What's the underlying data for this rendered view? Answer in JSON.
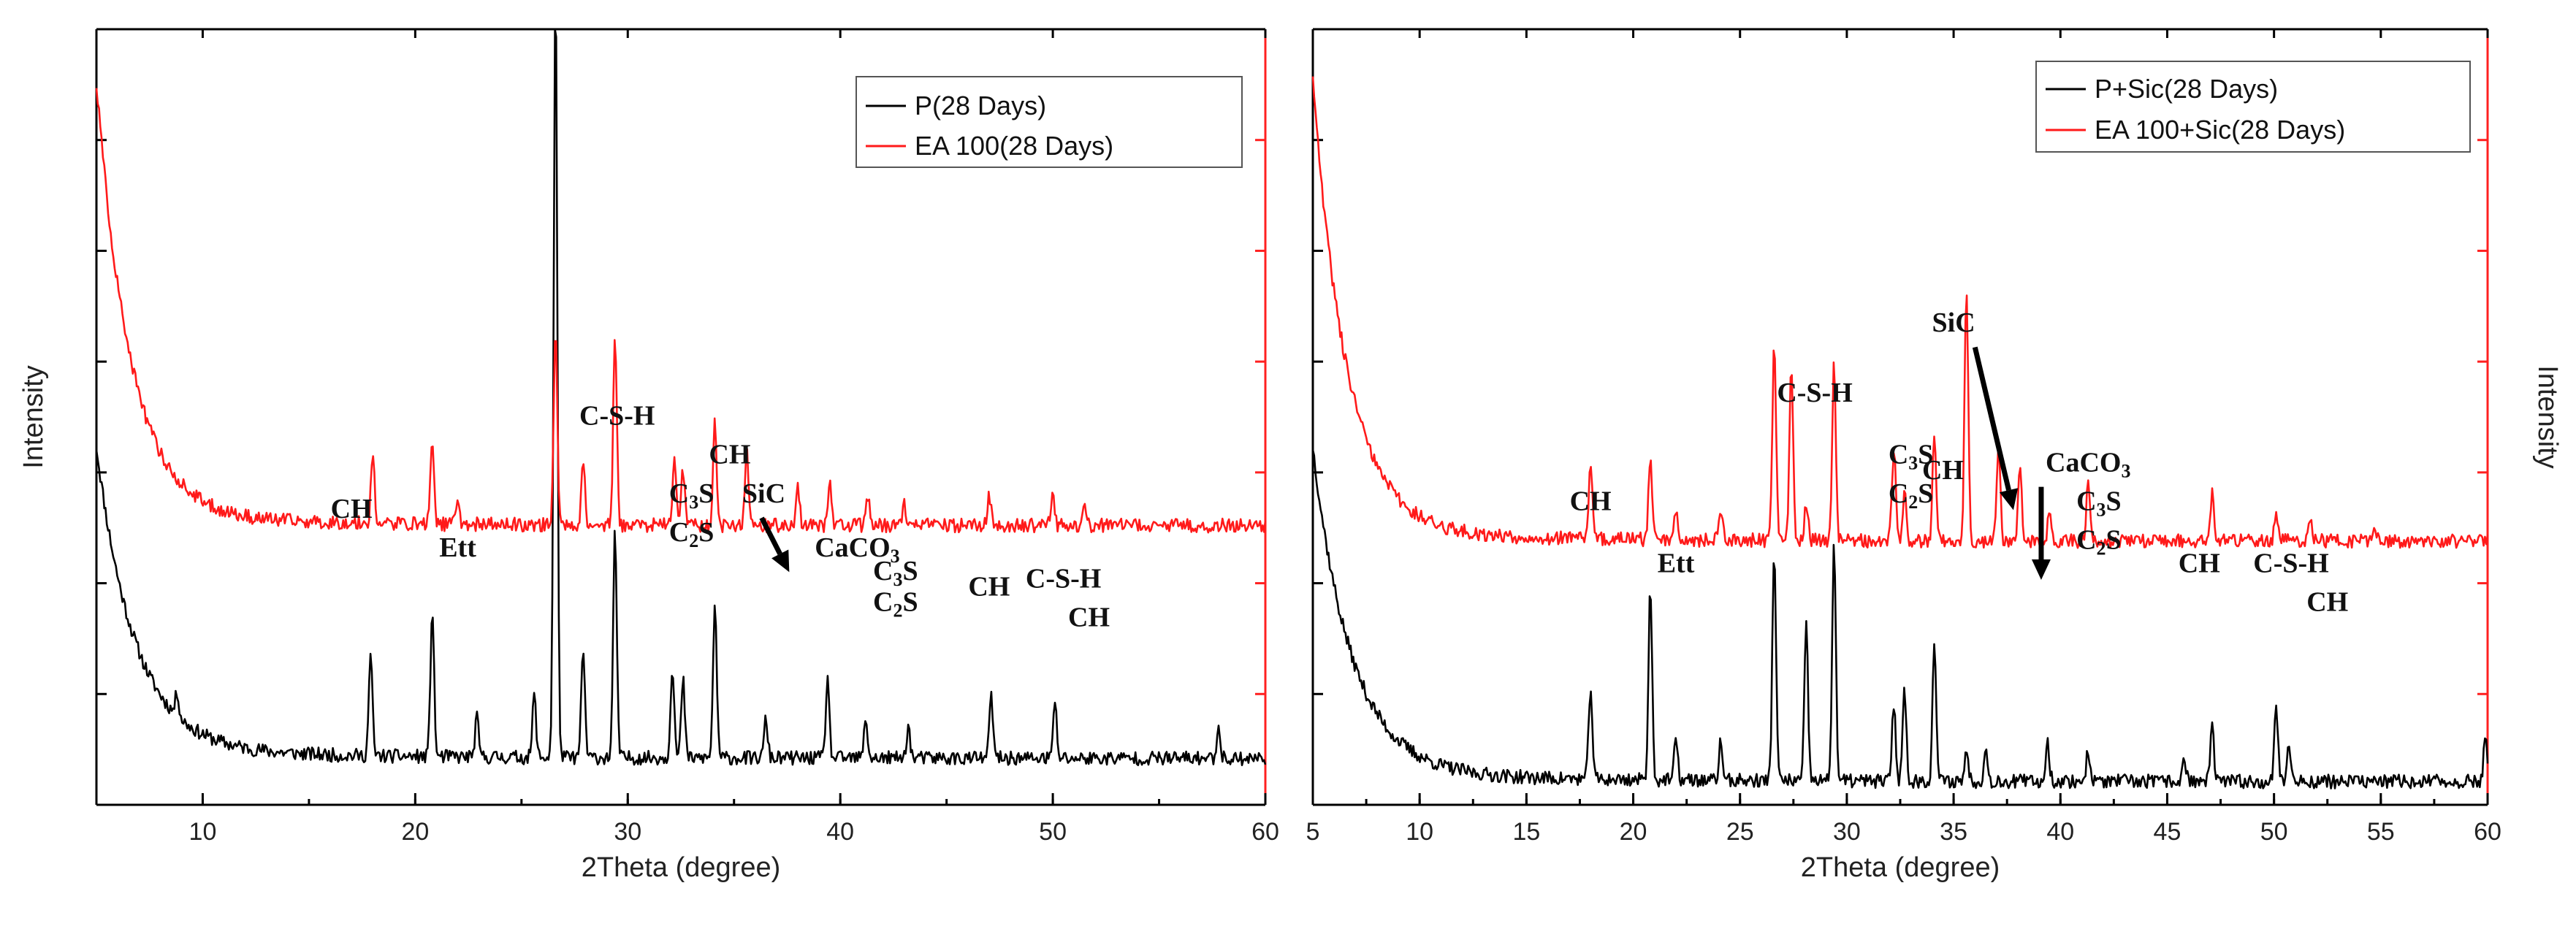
{
  "chart_data": [
    {
      "type": "line",
      "xlabel": "2Theta (degree)",
      "ylabel": "Intensity",
      "xlim": [
        5,
        60
      ],
      "xticks": [
        10,
        20,
        30,
        40,
        50,
        60
      ],
      "legend_position": "top-right",
      "series": [
        {
          "name": "P(28 Days)",
          "color": "#000000",
          "baseline": 0.06,
          "background": {
            "start": 0.45,
            "decay": 1.8,
            "floor": 0.04
          },
          "peaks": [
            {
              "x": 8.8,
              "h": 0.03
            },
            {
              "x": 17.9,
              "h": 0.13
            },
            {
              "x": 20.8,
              "h": 0.19
            },
            {
              "x": 22.9,
              "h": 0.05
            },
            {
              "x": 25.6,
              "h": 0.08
            },
            {
              "x": 26.6,
              "h": 1.0
            },
            {
              "x": 27.9,
              "h": 0.14
            },
            {
              "x": 29.4,
              "h": 0.29
            },
            {
              "x": 32.1,
              "h": 0.12
            },
            {
              "x": 32.6,
              "h": 0.1
            },
            {
              "x": 34.1,
              "h": 0.2
            },
            {
              "x": 36.5,
              "h": 0.05
            },
            {
              "x": 39.4,
              "h": 0.1
            },
            {
              "x": 41.2,
              "h": 0.05
            },
            {
              "x": 43.2,
              "h": 0.04
            },
            {
              "x": 47.1,
              "h": 0.08
            },
            {
              "x": 50.1,
              "h": 0.07
            },
            {
              "x": 57.8,
              "h": 0.04
            }
          ]
        },
        {
          "name": "EA 100(28 Days)",
          "color": "#ff1a1a",
          "baseline": 0.36,
          "background": {
            "start": 0.92,
            "decay": 1.6,
            "floor": 0.42
          },
          "peaks": [
            {
              "x": 18.0,
              "h": 0.09
            },
            {
              "x": 20.8,
              "h": 0.11
            },
            {
              "x": 22.0,
              "h": 0.03
            },
            {
              "x": 26.6,
              "h": 0.25
            },
            {
              "x": 27.9,
              "h": 0.08
            },
            {
              "x": 29.4,
              "h": 0.24
            },
            {
              "x": 32.2,
              "h": 0.09
            },
            {
              "x": 32.6,
              "h": 0.07
            },
            {
              "x": 34.1,
              "h": 0.13
            },
            {
              "x": 35.6,
              "h": 0.1
            },
            {
              "x": 38.0,
              "h": 0.05
            },
            {
              "x": 39.5,
              "h": 0.06
            },
            {
              "x": 41.3,
              "h": 0.04
            },
            {
              "x": 43.0,
              "h": 0.03
            },
            {
              "x": 47.0,
              "h": 0.04
            },
            {
              "x": 50.0,
              "h": 0.04
            },
            {
              "x": 51.5,
              "h": 0.03
            }
          ]
        }
      ],
      "annotations": [
        {
          "text": "CH",
          "x": 17.0,
          "y": 0.37
        },
        {
          "text": "Ett",
          "x": 22.0,
          "y": 0.32
        },
        {
          "text": "C-S-H",
          "x": 29.5,
          "y": 0.49
        },
        {
          "text": "CH",
          "x": 34.8,
          "y": 0.44
        },
        {
          "text": "C3S",
          "x": 33.0,
          "y": 0.39
        },
        {
          "text": "C2S",
          "x": 33.0,
          "y": 0.34
        },
        {
          "text": "SiC",
          "x": 36.4,
          "y": 0.39
        },
        {
          "text": "CaCO3",
          "x": 40.8,
          "y": 0.32
        },
        {
          "text": "C3S",
          "x": 42.6,
          "y": 0.29
        },
        {
          "text": "C2S",
          "x": 42.6,
          "y": 0.25
        },
        {
          "text": "CH",
          "x": 47.0,
          "y": 0.27
        },
        {
          "text": "C-S-H",
          "x": 50.5,
          "y": 0.28
        },
        {
          "text": "CH",
          "x": 51.7,
          "y": 0.23
        }
      ],
      "arrow": {
        "from": [
          36.3,
          0.37
        ],
        "to": [
          37.6,
          0.3
        ]
      }
    },
    {
      "type": "line",
      "xlabel": "2Theta (degree)",
      "ylabel": "Intensity",
      "xlim": [
        5,
        60
      ],
      "xticks": [
        5,
        10,
        15,
        20,
        25,
        30,
        35,
        40,
        45,
        50,
        55,
        60
      ],
      "legend_position": "top-right",
      "series": [
        {
          "name": "P+Sic(28 Days)",
          "color": "#000000",
          "baseline": 0.03,
          "background": {
            "start": 0.45,
            "decay": 1.8,
            "floor": 0.04
          },
          "peaks": [
            {
              "x": 18.0,
              "h": 0.12
            },
            {
              "x": 20.8,
              "h": 0.25
            },
            {
              "x": 22.0,
              "h": 0.05
            },
            {
              "x": 24.1,
              "h": 0.05
            },
            {
              "x": 26.6,
              "h": 0.3
            },
            {
              "x": 28.1,
              "h": 0.2
            },
            {
              "x": 29.4,
              "h": 0.31
            },
            {
              "x": 32.2,
              "h": 0.1
            },
            {
              "x": 32.7,
              "h": 0.12
            },
            {
              "x": 34.1,
              "h": 0.18
            },
            {
              "x": 35.6,
              "h": 0.04
            },
            {
              "x": 36.5,
              "h": 0.04
            },
            {
              "x": 39.4,
              "h": 0.05
            },
            {
              "x": 41.3,
              "h": 0.04
            },
            {
              "x": 45.8,
              "h": 0.03
            },
            {
              "x": 47.1,
              "h": 0.07
            },
            {
              "x": 50.1,
              "h": 0.1
            },
            {
              "x": 50.7,
              "h": 0.05
            },
            {
              "x": 59.9,
              "h": 0.06
            }
          ]
        },
        {
          "name": "EA 100+Sic(28 Days)",
          "color": "#ff1a1a",
          "baseline": 0.34,
          "background": {
            "start": 0.92,
            "decay": 1.6,
            "floor": 0.42
          },
          "peaks": [
            {
              "x": 18.0,
              "h": 0.1
            },
            {
              "x": 20.8,
              "h": 0.11
            },
            {
              "x": 22.0,
              "h": 0.04
            },
            {
              "x": 24.1,
              "h": 0.04
            },
            {
              "x": 26.6,
              "h": 0.26
            },
            {
              "x": 27.4,
              "h": 0.22
            },
            {
              "x": 28.1,
              "h": 0.05
            },
            {
              "x": 29.4,
              "h": 0.23
            },
            {
              "x": 32.2,
              "h": 0.12
            },
            {
              "x": 32.7,
              "h": 0.06
            },
            {
              "x": 34.1,
              "h": 0.14
            },
            {
              "x": 35.6,
              "h": 0.33
            },
            {
              "x": 37.1,
              "h": 0.12
            },
            {
              "x": 38.1,
              "h": 0.1
            },
            {
              "x": 39.5,
              "h": 0.04
            },
            {
              "x": 41.3,
              "h": 0.08
            },
            {
              "x": 47.1,
              "h": 0.06
            },
            {
              "x": 50.1,
              "h": 0.04
            },
            {
              "x": 51.7,
              "h": 0.03
            },
            {
              "x": 54.7,
              "h": 0.02
            }
          ]
        }
      ],
      "annotations": [
        {
          "text": "CH",
          "x": 18.0,
          "y": 0.38
        },
        {
          "text": "Ett",
          "x": 22.0,
          "y": 0.3
        },
        {
          "text": "C-S-H",
          "x": 28.5,
          "y": 0.52
        },
        {
          "text": "C3S",
          "x": 33.0,
          "y": 0.44
        },
        {
          "text": "C2S",
          "x": 33.0,
          "y": 0.39
        },
        {
          "text": "CH",
          "x": 34.5,
          "y": 0.42
        },
        {
          "text": "SiC",
          "x": 35.0,
          "y": 0.61
        },
        {
          "text": "CaCO3",
          "x": 41.3,
          "y": 0.43
        },
        {
          "text": "C3S",
          "x": 41.8,
          "y": 0.38
        },
        {
          "text": "C2S",
          "x": 41.8,
          "y": 0.33
        },
        {
          "text": "CH",
          "x": 46.5,
          "y": 0.3
        },
        {
          "text": "C-S-H",
          "x": 50.8,
          "y": 0.3
        },
        {
          "text": "CH",
          "x": 52.5,
          "y": 0.25
        }
      ],
      "arrows": [
        {
          "from": [
            36.0,
            0.59
          ],
          "to": [
            37.8,
            0.38
          ]
        },
        {
          "from": [
            39.1,
            0.41
          ],
          "to": [
            39.1,
            0.29
          ]
        }
      ]
    }
  ],
  "panels": [
    {
      "legend": [
        "P(28 Days)",
        "EA 100(28 Days)"
      ],
      "xlabel": "2Theta (degree)",
      "ylabel": "Intensity"
    },
    {
      "legend": [
        "P+Sic(28 Days)",
        "EA 100+Sic(28 Days)"
      ],
      "xlabel": "2Theta (degree)",
      "ylabel": "Intensity"
    }
  ]
}
